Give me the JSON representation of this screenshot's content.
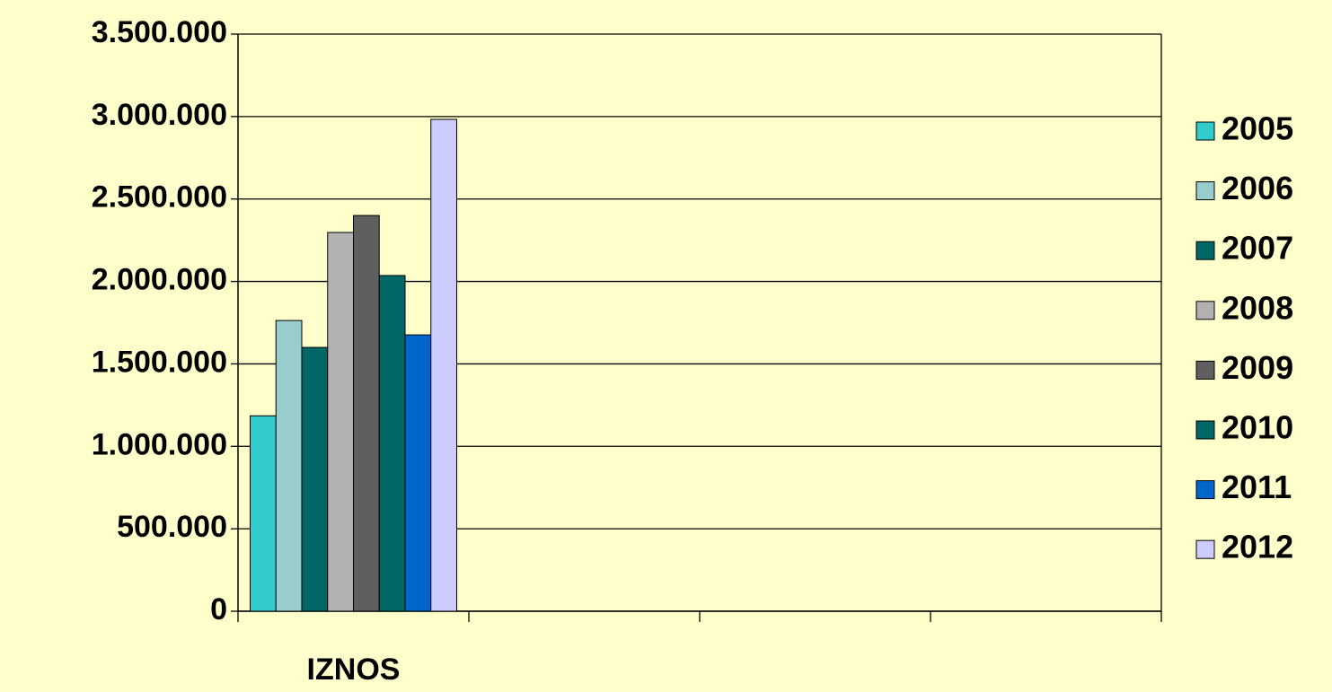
{
  "chart_data": {
    "type": "bar",
    "categories": [
      "IZNOS",
      null,
      null,
      null
    ],
    "series": [
      {
        "name": "2005",
        "color": "#33cccc",
        "values": [
          1185000,
          null,
          null,
          null
        ]
      },
      {
        "name": "2006",
        "color": "#99cccc",
        "values": [
          1763000,
          null,
          null,
          null
        ]
      },
      {
        "name": "2007",
        "color": "#006666",
        "values": [
          1600000,
          null,
          null,
          null
        ]
      },
      {
        "name": "2008",
        "color": "#b2b2b2",
        "values": [
          2297000,
          null,
          null,
          null
        ]
      },
      {
        "name": "2009",
        "color": "#5f5f5f",
        "values": [
          2400000,
          null,
          null,
          null
        ]
      },
      {
        "name": "2010",
        "color": "#006666",
        "values": [
          2036000,
          null,
          null,
          null
        ]
      },
      {
        "name": "2011",
        "color": "#0066cc",
        "values": [
          1676000,
          null,
          null,
          null
        ]
      },
      {
        "name": "2012",
        "color": "#ccccff",
        "values": [
          2983000,
          null,
          null,
          null
        ]
      }
    ],
    "ylim": [
      0,
      3500000
    ],
    "yticks": [
      0,
      {
        "value": 500000,
        "label": "500.000"
      },
      {
        "value": 1000000,
        "label": "1.000.000"
      },
      {
        "value": 1500000,
        "label": "1.500.000"
      },
      {
        "value": 2000000,
        "label": "2.000.000"
      },
      {
        "value": 2500000,
        "label": "2.500.000"
      },
      {
        "value": 3000000,
        "label": "3.000.000"
      },
      {
        "value": 3500000,
        "label": "3.500.000"
      }
    ],
    "grid": true,
    "legend": "right"
  }
}
